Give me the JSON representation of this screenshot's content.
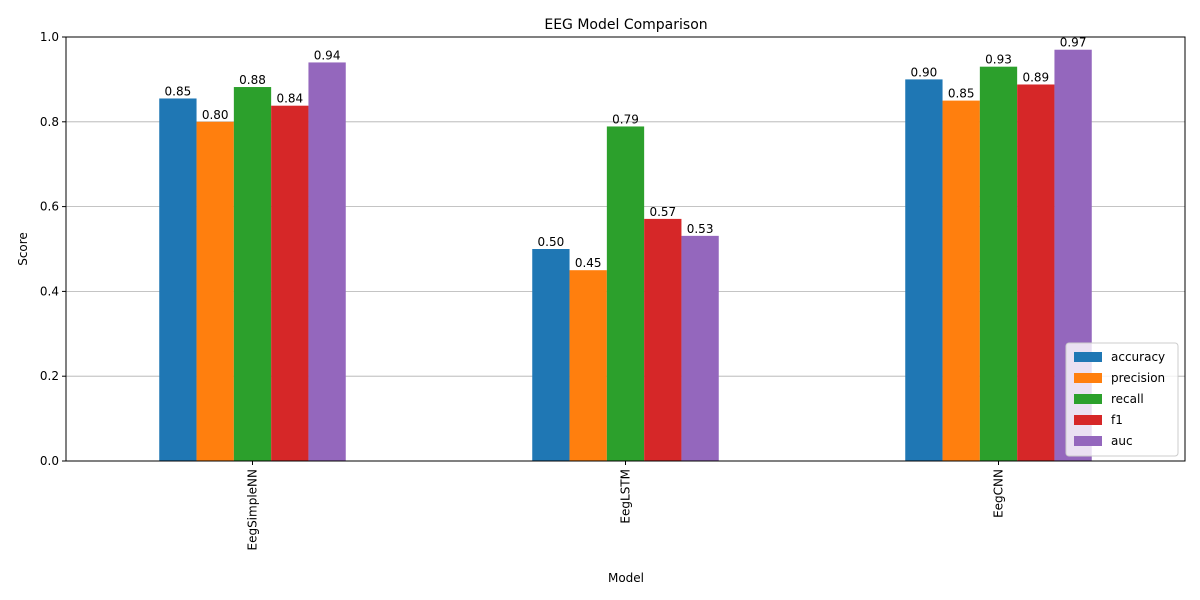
{
  "chart_data": {
    "type": "bar",
    "title": "EEG Model Comparison",
    "xlabel": "Model",
    "ylabel": "Score",
    "ylim": [
      0,
      1.0
    ],
    "yticks": [
      "0.0",
      "0.2",
      "0.4",
      "0.6",
      "0.8",
      "1.0"
    ],
    "categories": [
      "EegSimpleNN",
      "EegLSTM",
      "EegCNN"
    ],
    "grid": "horizontal",
    "legend_position": "lower right",
    "series": [
      {
        "name": "accuracy",
        "color": "#1f77b4",
        "values": [
          0.855,
          0.5,
          0.9
        ],
        "labels": [
          "0.85",
          "0.50",
          "0.90"
        ]
      },
      {
        "name": "precision",
        "color": "#ff7f0e",
        "values": [
          0.8,
          0.45,
          0.85
        ],
        "labels": [
          "0.80",
          "0.45",
          "0.85"
        ]
      },
      {
        "name": "recall",
        "color": "#2ca02c",
        "values": [
          0.882,
          0.789,
          0.93
        ],
        "labels": [
          "0.88",
          "0.79",
          "0.93"
        ]
      },
      {
        "name": "f1",
        "color": "#d62728",
        "values": [
          0.838,
          0.571,
          0.888
        ],
        "labels": [
          "0.84",
          "0.57",
          "0.89"
        ]
      },
      {
        "name": "auc",
        "color": "#9467bd",
        "values": [
          0.94,
          0.531,
          0.97
        ],
        "labels": [
          "0.94",
          "0.53",
          "0.97"
        ]
      }
    ]
  }
}
